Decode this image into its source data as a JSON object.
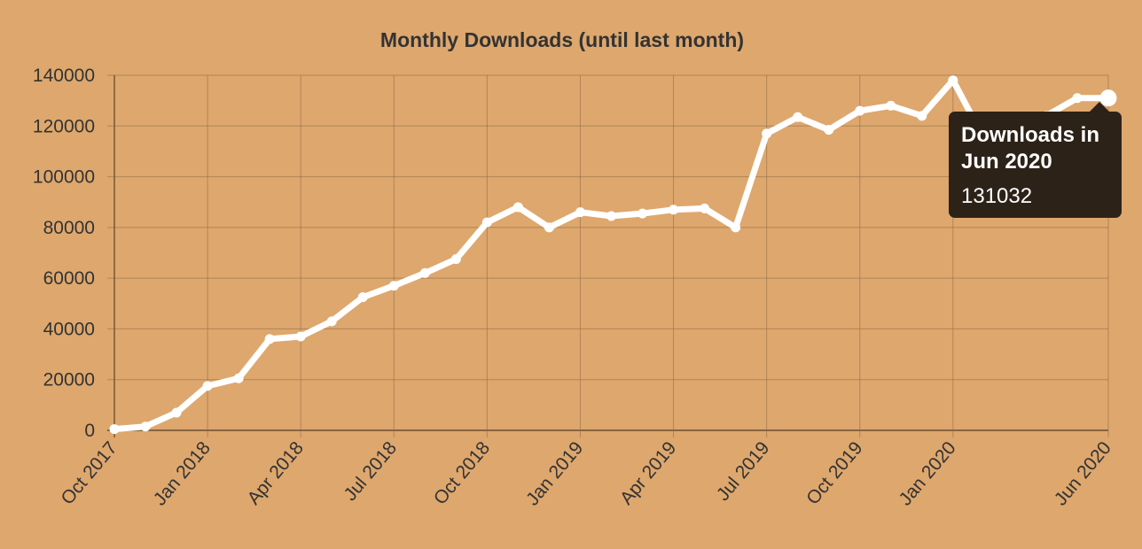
{
  "chart_data": {
    "type": "line",
    "title": "Monthly Downloads (until last month)",
    "xlabel": "",
    "ylabel": "",
    "ylim": [
      0,
      140000
    ],
    "yticks": [
      0,
      20000,
      40000,
      60000,
      80000,
      100000,
      120000,
      140000
    ],
    "ytick_labels": [
      "0",
      "20000",
      "40000",
      "60000",
      "80000",
      "100000",
      "120000",
      "140000"
    ],
    "xticks": [
      "Oct 2017",
      "Jan 2018",
      "Apr 2018",
      "Jul 2018",
      "Oct 2018",
      "Jan 2019",
      "Apr 2019",
      "Jul 2019",
      "Oct 2019",
      "Jan 2020",
      "Jun 2020"
    ],
    "grid": true,
    "line_color": "#ffffff",
    "background_color": "#dea76d",
    "series": [
      {
        "x": [
          "Oct 2017",
          "Nov 2017",
          "Dec 2017",
          "Jan 2018",
          "Feb 2018",
          "Mar 2018",
          "Apr 2018",
          "May 2018",
          "Jun 2018",
          "Jul 2018",
          "Aug 2018",
          "Sep 2018",
          "Oct 2018",
          "Nov 2018",
          "Dec 2018",
          "Jan 2019",
          "Feb 2019",
          "Mar 2019",
          "Apr 2019",
          "May 2019",
          "Jun 2019",
          "Jul 2019",
          "Aug 2019",
          "Sep 2019",
          "Oct 2019",
          "Nov 2019",
          "Dec 2019",
          "Jan 2020",
          "Feb 2020",
          "Mar 2020",
          "Apr 2020",
          "May 2020",
          "Jun 2020"
        ],
        "values": [
          500,
          1500,
          7000,
          17500,
          20500,
          36000,
          37000,
          43000,
          52500,
          57000,
          62000,
          67500,
          82000,
          88000,
          80000,
          86000,
          84500,
          85500,
          87000,
          87500,
          80000,
          117000,
          123500,
          118500,
          126000,
          128000,
          124000,
          138000,
          115000,
          116500,
          124000,
          131000,
          131032
        ]
      }
    ]
  },
  "tooltip": {
    "title": "Downloads in Jun 2020",
    "value": "131032"
  }
}
